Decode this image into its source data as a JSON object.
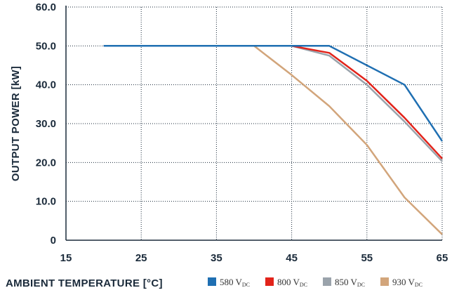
{
  "chart_data": {
    "type": "line",
    "xlabel": "AMBIENT TEMPERATURE [°C]",
    "ylabel": "OUTPUT POWER [kW]",
    "xlim": [
      15,
      65
    ],
    "ylim": [
      0,
      60
    ],
    "xticks": [
      15,
      25,
      35,
      45,
      55,
      65
    ],
    "xtick_labels": [
      "15",
      "25",
      "35",
      "45",
      "55",
      "65"
    ],
    "yticks": [
      0,
      10,
      20,
      30,
      40,
      50,
      60
    ],
    "ytick_labels": [
      "0",
      "10.0",
      "20.0",
      "30.0",
      "40.0",
      "50.0",
      "60.0"
    ],
    "grid": true,
    "legend_position": "bottom-right",
    "series": [
      {
        "name": "580 V",
        "name_sub": "DC",
        "color": "#1f6fb2",
        "points": [
          [
            20,
            50
          ],
          [
            50,
            50
          ],
          [
            60,
            40
          ],
          [
            65,
            25.5
          ]
        ]
      },
      {
        "name": "800 V",
        "name_sub": "DC",
        "color": "#e2231a",
        "points": [
          [
            20,
            50
          ],
          [
            45,
            50
          ],
          [
            50,
            48.2
          ],
          [
            55,
            41
          ],
          [
            60,
            31.5
          ],
          [
            65,
            21
          ]
        ]
      },
      {
        "name": "850 V",
        "name_sub": "DC",
        "color": "#9aa3ab",
        "points": [
          [
            20,
            50
          ],
          [
            45,
            50
          ],
          [
            50,
            47.5
          ],
          [
            55,
            40
          ],
          [
            60,
            30.5
          ],
          [
            65,
            20.3
          ]
        ]
      },
      {
        "name": "930 V",
        "name_sub": "DC",
        "color": "#d2a57b",
        "points": [
          [
            20,
            50
          ],
          [
            40,
            50
          ],
          [
            45,
            42.5
          ],
          [
            50,
            34.5
          ],
          [
            55,
            24.5
          ],
          [
            60,
            11
          ],
          [
            65,
            1.5
          ]
        ]
      }
    ]
  }
}
